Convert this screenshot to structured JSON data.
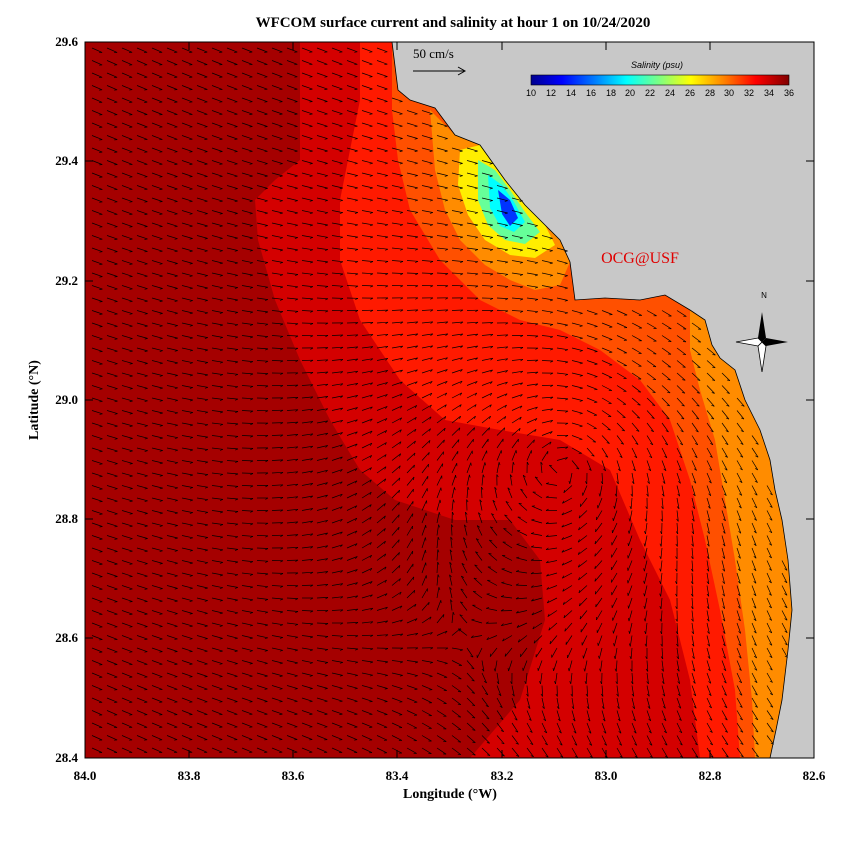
{
  "title": "WFCOM surface current and salinity at hour 1 on 10/24/2020",
  "x_axis": {
    "label": "Longitude (°W)",
    "ticks": [
      "84.0",
      "83.8",
      "83.6",
      "83.4",
      "83.2",
      "83.0",
      "82.8",
      "82.6"
    ]
  },
  "y_axis": {
    "label": "Latitude (°N)",
    "ticks": [
      "28.4",
      "28.6",
      "28.8",
      "29.0",
      "29.2",
      "29.4",
      "29.6"
    ]
  },
  "scale_arrow": {
    "label": "50 cm/s"
  },
  "colorbar": {
    "title": "Salinity (psu)",
    "ticks": [
      "10",
      "12",
      "14",
      "16",
      "18",
      "20",
      "22",
      "24",
      "26",
      "28",
      "30",
      "32",
      "34",
      "36"
    ],
    "colors": [
      "#00008f",
      "#0000ff",
      "#0080ff",
      "#00ffff",
      "#80ff80",
      "#ffff00",
      "#ff8000",
      "#ff0000",
      "#800000"
    ]
  },
  "credit": "OCG@USF",
  "compass_label": "N",
  "colors": {
    "land": "#c8c8c8",
    "water_deep": "#a50000",
    "water_mid": "#d40000",
    "water_shelf": "#ff1a00",
    "water_coast": "#ff5000",
    "water_nearshore": "#ff8c00",
    "plume_yellow": "#ffee00",
    "plume_green": "#66ff99",
    "plume_cyan": "#00ffff",
    "plume_blue": "#0033ff",
    "credit": "#e00000"
  }
}
